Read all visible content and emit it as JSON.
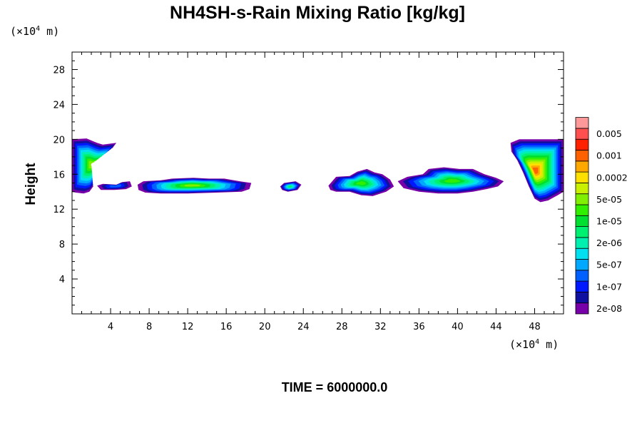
{
  "chart_data": {
    "type": "heatmap",
    "title": "NH4SH-s-Rain Mixing Ratio [kg/kg]",
    "ylabel": "Height",
    "x_unit": {
      "prefix": "(×10",
      "exp": "4",
      "suffix": " m)"
    },
    "y_unit": {
      "prefix": "(×10",
      "exp": "4",
      "suffix": " m)"
    },
    "xlim": [
      0,
      51
    ],
    "ylim": [
      0,
      30
    ],
    "x_ticks": [
      4,
      8,
      12,
      16,
      20,
      24,
      28,
      32,
      36,
      40,
      44,
      48
    ],
    "y_ticks": [
      4,
      8,
      12,
      16,
      20,
      24,
      28
    ],
    "legend": {
      "levels": [
        "2e-08",
        "",
        "1e-07",
        "",
        "5e-07",
        "",
        "2e-06",
        "",
        "1e-05",
        "",
        "5e-05",
        "",
        "0.0002",
        "",
        "0.001",
        "",
        "0.005",
        ""
      ],
      "colors": [
        "#7800a8",
        "#1010a0",
        "#0018ff",
        "#0060ff",
        "#00a8ff",
        "#00e0f0",
        "#00f0b0",
        "#00f070",
        "#00e030",
        "#30f000",
        "#80f000",
        "#c8f000",
        "#ffe000",
        "#ffa800",
        "#ff6000",
        "#ff2000",
        "#ff5050",
        "#ff9898"
      ]
    },
    "regions": [
      {
        "name": "left-edge",
        "x": [
          0.0,
          6.0
        ],
        "y": [
          13.8,
          20.0
        ],
        "peak_level": 10,
        "shape": [
          [
            0.0,
            20.0
          ],
          [
            1.5,
            20.1
          ],
          [
            2.6,
            19.6
          ],
          [
            3.2,
            19.4
          ],
          [
            4.6,
            19.6
          ],
          [
            4.2,
            19.0
          ],
          [
            3.0,
            18.6
          ],
          [
            2.0,
            17.8
          ],
          [
            1.6,
            16.8
          ],
          [
            2.0,
            15.6
          ],
          [
            2.2,
            14.6
          ],
          [
            1.8,
            14.0
          ],
          [
            1.2,
            13.8
          ],
          [
            0.4,
            13.9
          ],
          [
            0.0,
            14.0
          ]
        ]
      },
      {
        "name": "cell-4",
        "x": [
          2.5,
          6.0
        ],
        "y": [
          14.1,
          15.4
        ],
        "peak_level": 3,
        "shape": [
          [
            2.6,
            14.7
          ],
          [
            3.2,
            14.9
          ],
          [
            4.6,
            14.8
          ],
          [
            5.2,
            15.1
          ],
          [
            6.0,
            15.2
          ],
          [
            6.2,
            14.6
          ],
          [
            5.6,
            14.3
          ],
          [
            4.4,
            14.2
          ],
          [
            3.0,
            14.2
          ]
        ]
      },
      {
        "name": "band-8-18",
        "x": [
          6.8,
          18.5
        ],
        "y": [
          13.7,
          15.7
        ],
        "peak_level": 10,
        "shape": [
          [
            6.8,
            14.8
          ],
          [
            7.4,
            15.2
          ],
          [
            9.2,
            15.3
          ],
          [
            10.4,
            15.5
          ],
          [
            12.6,
            15.6
          ],
          [
            14.2,
            15.5
          ],
          [
            15.8,
            15.5
          ],
          [
            17.4,
            15.2
          ],
          [
            18.6,
            15.0
          ],
          [
            18.4,
            14.3
          ],
          [
            17.6,
            14.0
          ],
          [
            15.0,
            13.9
          ],
          [
            12.0,
            13.8
          ],
          [
            9.2,
            13.8
          ],
          [
            7.6,
            13.9
          ],
          [
            6.9,
            14.2
          ]
        ]
      },
      {
        "name": "cell-22",
        "x": [
          21.5,
          23.8
        ],
        "y": [
          14.0,
          15.6
        ],
        "peak_level": 7,
        "shape": [
          [
            21.6,
            14.6
          ],
          [
            22.0,
            15.0
          ],
          [
            23.2,
            15.2
          ],
          [
            23.8,
            14.8
          ],
          [
            23.4,
            14.2
          ],
          [
            22.4,
            14.0
          ],
          [
            21.8,
            14.2
          ]
        ]
      },
      {
        "name": "cells-28-33",
        "x": [
          26.5,
          33.5
        ],
        "y": [
          13.4,
          16.6
        ],
        "peak_level": 9,
        "shape": [
          [
            26.6,
            14.7
          ],
          [
            27.4,
            15.7
          ],
          [
            28.8,
            15.8
          ],
          [
            29.6,
            16.3
          ],
          [
            30.6,
            16.6
          ],
          [
            31.4,
            16.2
          ],
          [
            32.2,
            16.0
          ],
          [
            33.0,
            15.4
          ],
          [
            33.4,
            14.6
          ],
          [
            32.6,
            14.0
          ],
          [
            31.2,
            13.5
          ],
          [
            30.0,
            13.6
          ],
          [
            28.8,
            14.0
          ],
          [
            27.4,
            14.0
          ],
          [
            26.8,
            14.2
          ]
        ]
      },
      {
        "name": "band-34-44",
        "x": [
          33.8,
          45.0
        ],
        "y": [
          13.8,
          17.2
        ],
        "peak_level": 9,
        "shape": [
          [
            33.8,
            15.2
          ],
          [
            34.8,
            15.7
          ],
          [
            36.4,
            16.0
          ],
          [
            37.0,
            16.6
          ],
          [
            38.6,
            16.8
          ],
          [
            40.2,
            16.6
          ],
          [
            41.6,
            16.6
          ],
          [
            42.8,
            16.0
          ],
          [
            44.0,
            15.6
          ],
          [
            44.8,
            15.2
          ],
          [
            44.2,
            14.6
          ],
          [
            43.0,
            14.3
          ],
          [
            41.6,
            14.0
          ],
          [
            40.0,
            13.8
          ],
          [
            38.0,
            13.8
          ],
          [
            36.0,
            14.0
          ],
          [
            34.4,
            14.4
          ]
        ]
      },
      {
        "name": "right-edge",
        "x": [
          45.5,
          51.0
        ],
        "y": [
          12.8,
          20.0
        ],
        "peak_level": 14,
        "shape": [
          [
            45.5,
            19.6
          ],
          [
            46.4,
            20.0
          ],
          [
            48.4,
            20.0
          ],
          [
            51.0,
            20.0
          ],
          [
            51.0,
            14.0
          ],
          [
            50.4,
            13.6
          ],
          [
            49.4,
            13.0
          ],
          [
            48.6,
            12.8
          ],
          [
            48.0,
            13.2
          ],
          [
            47.4,
            14.6
          ],
          [
            46.8,
            16.2
          ],
          [
            46.2,
            17.6
          ],
          [
            45.6,
            18.6
          ]
        ]
      }
    ]
  },
  "footer": {
    "time_label": "TIME = 6000000.0"
  }
}
